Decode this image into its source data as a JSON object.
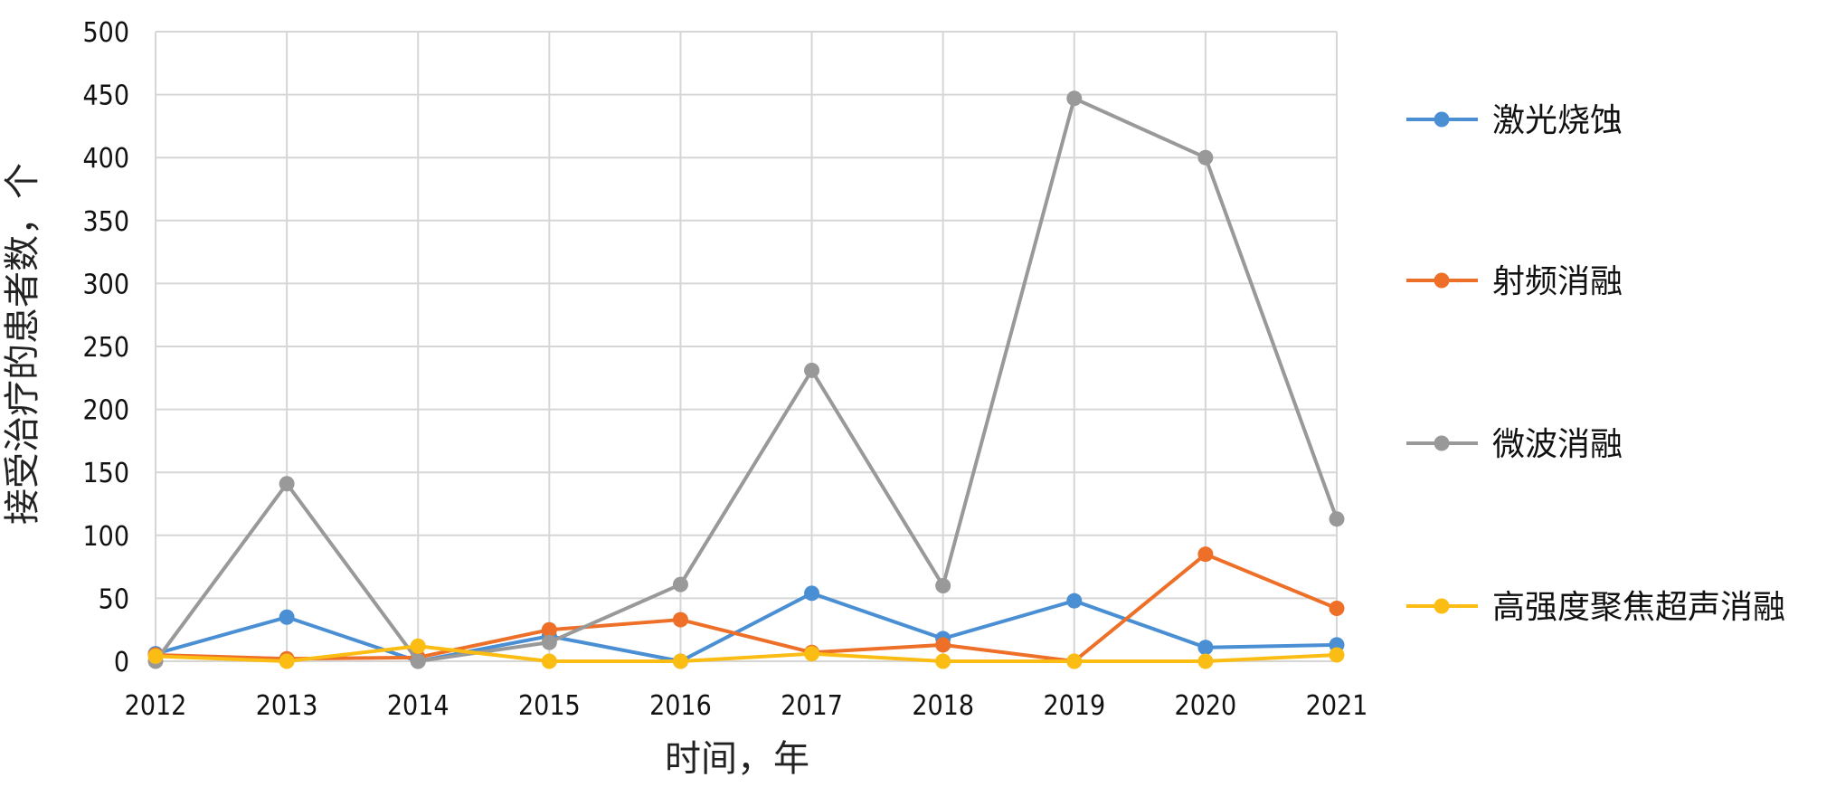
{
  "chart_data": {
    "type": "line",
    "title": "",
    "xlabel": "时间，年",
    "ylabel": "接受治疗的患者数，个",
    "x": [
      "2012",
      "2013",
      "2014",
      "2015",
      "2016",
      "2017",
      "2018",
      "2019",
      "2020",
      "2021"
    ],
    "ylim": [
      0,
      500
    ],
    "yticks": [
      "0",
      "50",
      "100",
      "150",
      "200",
      "250",
      "300",
      "350",
      "400",
      "450",
      "500"
    ],
    "grid": true,
    "legend_position": "right",
    "series": [
      {
        "name": "激光烧蚀",
        "color": "#4a8fd4",
        "values": [
          6,
          35,
          0,
          20,
          0,
          54,
          18,
          48,
          11,
          13
        ]
      },
      {
        "name": "射频消融",
        "color": "#ed6f28",
        "values": [
          5,
          2,
          3,
          25,
          33,
          7,
          13,
          0,
          85,
          42
        ]
      },
      {
        "name": "微波消融",
        "color": "#999999",
        "values": [
          0,
          141,
          0,
          15,
          61,
          231,
          60,
          447,
          400,
          113
        ]
      },
      {
        "name": "高强度聚焦超声消融",
        "color": "#fbbd13",
        "values": [
          4,
          0,
          12,
          0,
          0,
          6,
          0,
          0,
          0,
          5
        ]
      }
    ]
  }
}
